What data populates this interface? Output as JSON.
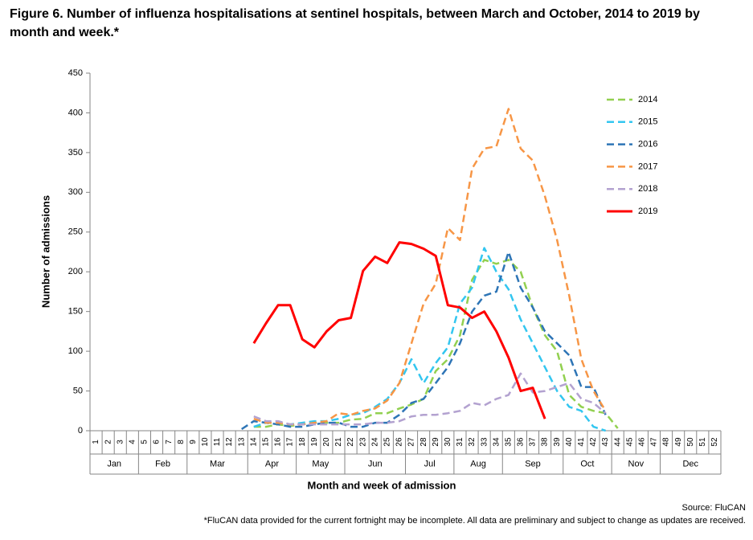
{
  "chart_data": {
    "type": "line",
    "title": "Figure 6. Number of influenza hospitalisations at sentinel hospitals, between March and October, 2014 to 2019 by month and week.*",
    "x_label": "Month and week of admission",
    "y_label": "Number of admissions",
    "source": "Source: FluCAN",
    "footnote": "*FluCAN data provided for the current fortnight may be incomplete. All data are preliminary and subject to change as updates are received.",
    "categories": [
      "1",
      "2",
      "3",
      "4",
      "5",
      "6",
      "7",
      "8",
      "9",
      "10",
      "11",
      "12",
      "13",
      "14",
      "15",
      "16",
      "17",
      "18",
      "19",
      "20",
      "21",
      "22",
      "23",
      "24",
      "25",
      "26",
      "27",
      "28",
      "29",
      "30",
      "31",
      "32",
      "33",
      "34",
      "35",
      "36",
      "37",
      "38",
      "39",
      "40",
      "41",
      "42",
      "43",
      "44",
      "45",
      "46",
      "47",
      "48",
      "49",
      "50",
      "51",
      "52"
    ],
    "x_groups": [
      {
        "label": "Jan",
        "start": "1",
        "end": "4"
      },
      {
        "label": "Feb",
        "start": "5",
        "end": "8"
      },
      {
        "label": "Mar",
        "start": "9",
        "end": "13"
      },
      {
        "label": "Apr",
        "start": "14",
        "end": "17"
      },
      {
        "label": "May",
        "start": "18",
        "end": "21"
      },
      {
        "label": "Jun",
        "start": "22",
        "end": "26"
      },
      {
        "label": "Jul",
        "start": "27",
        "end": "30"
      },
      {
        "label": "Aug",
        "start": "31",
        "end": "34"
      },
      {
        "label": "Sep",
        "start": "35",
        "end": "39"
      },
      {
        "label": "Oct",
        "start": "40",
        "end": "43"
      },
      {
        "label": "Nov",
        "start": "44",
        "end": "47"
      },
      {
        "label": "Dec",
        "start": "48",
        "end": "52"
      }
    ],
    "ylim": [
      0,
      450
    ],
    "yticks": [
      0,
      50,
      100,
      150,
      200,
      250,
      300,
      350,
      400,
      450
    ],
    "grid": false,
    "legend": "top-right",
    "series": [
      {
        "name": "2014",
        "color": "#92d050",
        "dashed": true,
        "values": [
          null,
          null,
          null,
          null,
          null,
          null,
          null,
          null,
          null,
          null,
          null,
          null,
          null,
          5,
          5,
          8,
          6,
          8,
          10,
          10,
          10,
          14,
          15,
          22,
          22,
          28,
          33,
          40,
          75,
          90,
          120,
          190,
          215,
          210,
          215,
          200,
          155,
          120,
          100,
          45,
          30,
          25,
          22,
          3,
          null,
          null,
          null,
          null,
          null,
          null,
          null,
          null
        ]
      },
      {
        "name": "2015",
        "color": "#33c6f0",
        "dashed": true,
        "values": [
          null,
          null,
          null,
          null,
          null,
          null,
          null,
          null,
          null,
          null,
          null,
          null,
          null,
          5,
          10,
          10,
          8,
          10,
          12,
          12,
          15,
          20,
          22,
          30,
          40,
          60,
          90,
          60,
          85,
          105,
          160,
          180,
          230,
          200,
          178,
          140,
          110,
          80,
          50,
          30,
          25,
          5,
          0,
          null,
          null,
          null,
          null,
          null,
          null,
          null,
          null,
          null
        ]
      },
      {
        "name": "2016",
        "color": "#2e75b6",
        "dashed": true,
        "values": [
          null,
          null,
          null,
          null,
          null,
          null,
          null,
          null,
          null,
          null,
          null,
          null,
          2,
          12,
          10,
          8,
          5,
          5,
          8,
          10,
          10,
          5,
          5,
          10,
          10,
          20,
          35,
          40,
          60,
          80,
          110,
          150,
          170,
          175,
          225,
          180,
          155,
          125,
          110,
          95,
          55,
          55,
          20,
          null,
          null,
          null,
          null,
          null,
          null,
          null,
          null,
          null
        ]
      },
      {
        "name": "2017",
        "color": "#f79646",
        "dashed": true,
        "values": [
          null,
          null,
          null,
          null,
          null,
          null,
          null,
          null,
          null,
          null,
          null,
          null,
          null,
          15,
          10,
          10,
          8,
          8,
          10,
          12,
          22,
          20,
          25,
          28,
          38,
          60,
          110,
          160,
          185,
          255,
          240,
          330,
          355,
          358,
          405,
          355,
          340,
          295,
          240,
          170,
          90,
          50,
          25,
          null,
          null,
          null,
          null,
          null,
          null,
          null,
          null,
          null
        ]
      },
      {
        "name": "2018",
        "color": "#b3a2d0",
        "dashed": true,
        "values": [
          null,
          null,
          null,
          null,
          null,
          null,
          null,
          null,
          null,
          null,
          null,
          null,
          null,
          18,
          12,
          12,
          8,
          8,
          8,
          8,
          8,
          8,
          8,
          10,
          10,
          12,
          18,
          20,
          20,
          22,
          25,
          35,
          32,
          40,
          45,
          72,
          48,
          50,
          55,
          60,
          40,
          35,
          22,
          null,
          null,
          null,
          null,
          null,
          null,
          null,
          null,
          null
        ]
      },
      {
        "name": "2019",
        "color": "#ff0000",
        "dashed": false,
        "values": [
          null,
          null,
          null,
          null,
          null,
          null,
          null,
          null,
          null,
          null,
          null,
          null,
          null,
          110,
          135,
          158,
          158,
          115,
          105,
          125,
          139,
          142,
          201,
          219,
          211,
          237,
          235,
          229,
          220,
          158,
          155,
          142,
          150,
          125,
          92,
          50,
          54,
          15,
          null,
          null,
          null,
          null,
          null,
          null,
          null,
          null,
          null,
          null,
          null,
          null,
          null,
          null
        ]
      }
    ]
  }
}
